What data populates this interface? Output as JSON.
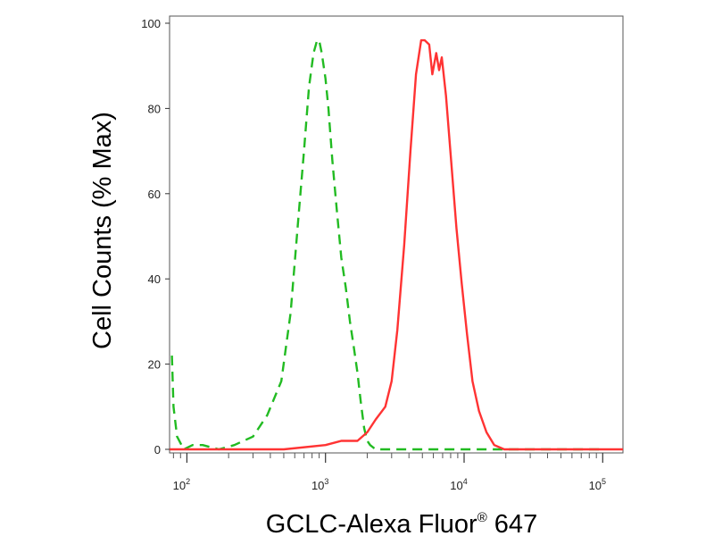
{
  "chart_data": {
    "type": "line",
    "title": "",
    "xlabel": "GCLC-Alexa Fluor",
    "xlabel_mark": "®",
    "xlabel_tail": " 647",
    "ylabel": "Cell Counts (% Max)",
    "x_scale": "log",
    "xlim": [
      75,
      140000
    ],
    "ylim": [
      0,
      100
    ],
    "x_ticks": [
      {
        "value": 100,
        "base": "10",
        "exp": "2"
      },
      {
        "value": 1000,
        "base": "10",
        "exp": "3"
      },
      {
        "value": 10000,
        "base": "10",
        "exp": "4"
      },
      {
        "value": 100000,
        "base": "10",
        "exp": "5"
      }
    ],
    "y_ticks": [
      0,
      20,
      40,
      60,
      80,
      100
    ],
    "grid": false,
    "legend": "none",
    "series": [
      {
        "color": "#22bb22",
        "dash": "dashed",
        "x": [
          78,
          80,
          85,
          95,
          110,
          130,
          170,
          220,
          300,
          380,
          480,
          560,
          640,
          700,
          760,
          820,
          870,
          900,
          940,
          1000,
          1050,
          1120,
          1200,
          1300,
          1400,
          1500,
          1600,
          1700,
          1800,
          1900,
          2000,
          2100,
          2300,
          3000,
          5000,
          10000,
          30000,
          100000
        ],
        "y": [
          22,
          10,
          3,
          0,
          1,
          1,
          0,
          1,
          3,
          8,
          16,
          32,
          55,
          70,
          85,
          93,
          96,
          96,
          93,
          87,
          80,
          68,
          57,
          45,
          38,
          30,
          24,
          18,
          11,
          5,
          2,
          1,
          0,
          0,
          0,
          0,
          0,
          0
        ]
      },
      {
        "color": "#ff3333",
        "dash": "solid",
        "x": [
          75,
          500,
          1000,
          1300,
          1700,
          2000,
          2300,
          2700,
          3000,
          3300,
          3700,
          4100,
          4500,
          4900,
          5200,
          5600,
          5900,
          6300,
          6600,
          6900,
          7400,
          8000,
          8800,
          9600,
          10500,
          11500,
          12800,
          14500,
          16500,
          19500,
          24000,
          30000,
          50000,
          140000
        ],
        "y": [
          0,
          0,
          1,
          2,
          2,
          4,
          7,
          10,
          16,
          28,
          48,
          70,
          88,
          96,
          96,
          95,
          88,
          93,
          89,
          92,
          83,
          69,
          52,
          39,
          27,
          16,
          9,
          4,
          1,
          0,
          0,
          0,
          0,
          0
        ]
      }
    ]
  }
}
